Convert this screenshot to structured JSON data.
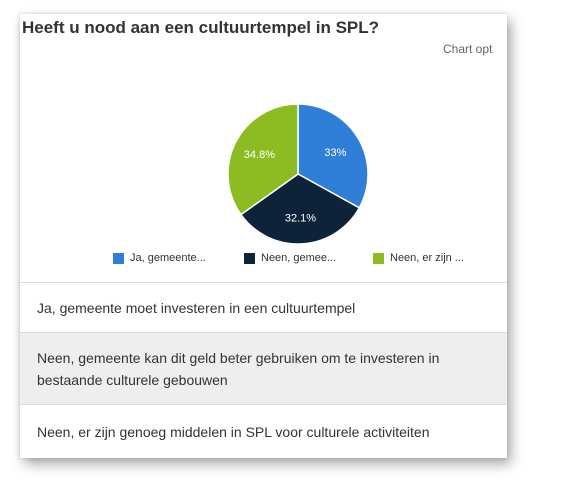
{
  "title": "Heeft u nood aan een cultuurtempel in SPL?",
  "chart_options_label": "Chart opt",
  "colors": {
    "ja": "#2f7ed8",
    "neen1": "#0d233a",
    "neen2": "#8bbc21"
  },
  "chart_data": {
    "type": "pie",
    "title": "",
    "slices": [
      {
        "label": "Ja, gemeente...",
        "value": 33,
        "display": "33%",
        "color": "#2f7ed8"
      },
      {
        "label": "Neen, gemee...",
        "value": 32.1,
        "display": "32.1%",
        "color": "#0d233a"
      },
      {
        "label": "Neen, er zijn ...",
        "value": 34.8,
        "display": "34.8%",
        "color": "#8bbc21"
      }
    ],
    "legend_position": "bottom"
  },
  "answers": [
    "Ja, gemeente moet investeren in een cultuurtempel",
    "Neen, gemeente kan dit geld beter gebruiken om te investeren in bestaande culturele gebouwen",
    "Neen, er zijn genoeg middelen in SPL voor culturele activiteiten"
  ]
}
